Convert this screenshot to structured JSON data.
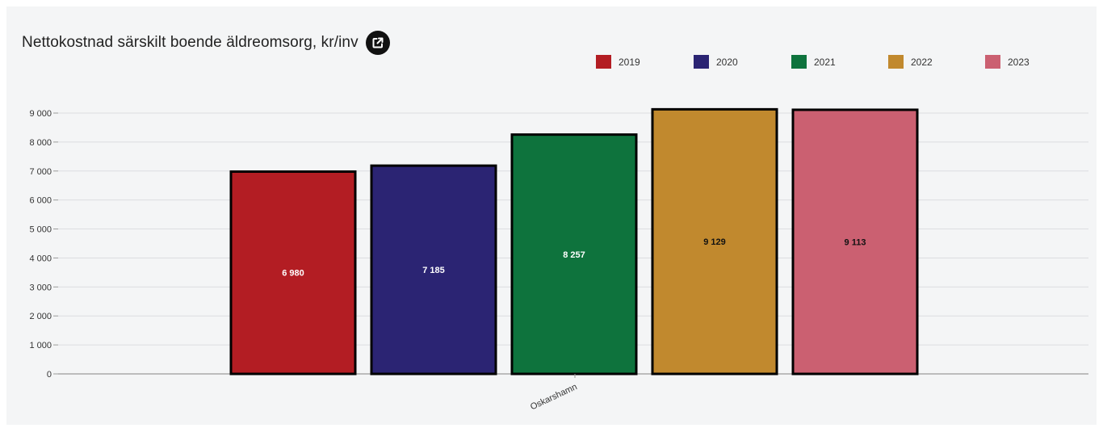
{
  "header": {
    "title": "Nettokostnad särskilt boende äldreomsorg, kr/inv",
    "external_link_icon": "external-link-icon"
  },
  "legend": {
    "placement": "top-right",
    "items": [
      {
        "label": "2019",
        "color": "#b31d23"
      },
      {
        "label": "2020",
        "color": "#2b2473"
      },
      {
        "label": "2021",
        "color": "#0e733d"
      },
      {
        "label": "2022",
        "color": "#c1892e"
      },
      {
        "label": "2023",
        "color": "#cb6071"
      }
    ]
  },
  "chart_data": {
    "type": "bar",
    "title": "Nettokostnad särskilt boende äldreomsorg, kr/inv",
    "categories": [
      "Oskarshamn"
    ],
    "series": [
      {
        "name": "2019",
        "values": [
          6980
        ],
        "color": "#b31d23",
        "value_label": "6 980",
        "label_color": "#ffffff"
      },
      {
        "name": "2020",
        "values": [
          7185
        ],
        "color": "#2b2473",
        "value_label": "7 185",
        "label_color": "#ffffff"
      },
      {
        "name": "2021",
        "values": [
          8257
        ],
        "color": "#0e733d",
        "value_label": "8 257",
        "label_color": "#ffffff"
      },
      {
        "name": "2022",
        "values": [
          9129
        ],
        "color": "#c1892e",
        "value_label": "9 129",
        "label_color": "#111111"
      },
      {
        "name": "2023",
        "values": [
          9113
        ],
        "color": "#cb6071",
        "value_label": "9 113",
        "label_color": "#111111"
      }
    ],
    "yticks": [
      0,
      1000,
      2000,
      3000,
      4000,
      5000,
      6000,
      7000,
      8000,
      9000
    ],
    "ytick_labels": [
      "0",
      "1 000",
      "2 000",
      "3 000",
      "4 000",
      "5 000",
      "6 000",
      "7 000",
      "8 000",
      "9 000"
    ],
    "ylim": [
      0,
      9000
    ],
    "xlabel": "",
    "ylabel": "",
    "grid": true,
    "legend_placement": "top-right"
  }
}
